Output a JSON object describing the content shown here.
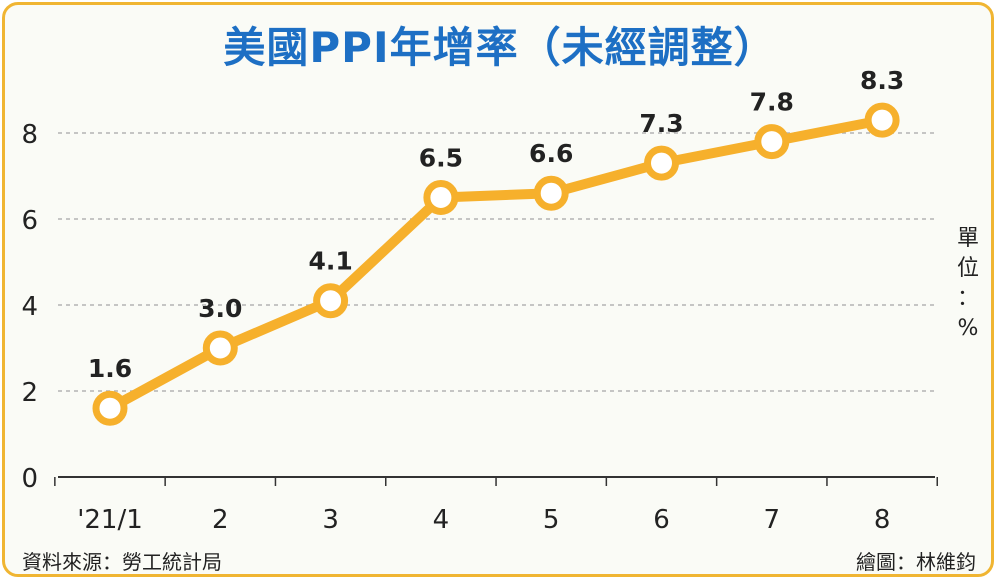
{
  "title": "美國PPI年增率（未經調整）",
  "unit_label": "單\n位\n：\n%",
  "source": "資料來源：勞工統計局",
  "credit": "繪圖：林維鈞",
  "colors": {
    "line": "#f6b02c",
    "title": "#1d6fc4",
    "grid": "#b3b3b3",
    "text": "#222222"
  },
  "chart_data": {
    "type": "line",
    "title": "美國PPI年增率（未經調整）",
    "categories": [
      "'21/1",
      "2",
      "3",
      "4",
      "5",
      "6",
      "7",
      "8"
    ],
    "series": [
      {
        "values": [
          1.6,
          3.0,
          4.1,
          6.5,
          6.6,
          7.3,
          7.8,
          8.3
        ],
        "labels": [
          "1.6",
          "3.0",
          "4.1",
          "6.5",
          "6.6",
          "7.3",
          "7.8",
          "8.3"
        ]
      }
    ],
    "ylim": [
      0,
      8
    ],
    "yticks": [
      0,
      2,
      4,
      6,
      8
    ],
    "ylabel": "單位：%",
    "grid": true
  }
}
